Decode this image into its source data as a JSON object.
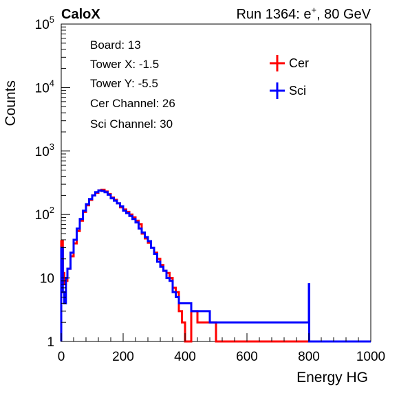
{
  "header": {
    "left_label": "CaloX",
    "run_text": "Run 1364: e",
    "run_superscript": "+",
    "run_energy": ", 80 GeV"
  },
  "info_box": {
    "lines": [
      "Board: 13",
      "Tower X: -1.5",
      "Tower Y: -5.5",
      "Cer Channel: 26",
      "Sci Channel: 30"
    ]
  },
  "chart_data": {
    "type": "line",
    "xlabel": "Energy HG",
    "ylabel": "Counts",
    "xlim": [
      0,
      1000
    ],
    "ylim": [
      1,
      100000
    ],
    "yscale": "log",
    "x_ticks": [
      "0",
      "200",
      "400",
      "600",
      "800",
      "1000"
    ],
    "y_ticks": [
      {
        "value": 1,
        "base": "1",
        "exp": ""
      },
      {
        "value": 10,
        "base": "10",
        "exp": ""
      },
      {
        "value": 100,
        "base": "10",
        "exp": "2"
      },
      {
        "value": 1000,
        "base": "10",
        "exp": "3"
      },
      {
        "value": 10000,
        "base": "10",
        "exp": "4"
      },
      {
        "value": 100000,
        "base": "10",
        "exp": "5"
      }
    ],
    "legend_position": "top-right",
    "grid": false,
    "series": [
      {
        "name": "Cer",
        "color": "#ff0000",
        "x": [
          0,
          5,
          10,
          15,
          20,
          30,
          40,
          50,
          60,
          70,
          80,
          90,
          100,
          110,
          120,
          130,
          140,
          150,
          160,
          170,
          180,
          190,
          200,
          210,
          220,
          230,
          240,
          250,
          260,
          270,
          280,
          290,
          300,
          310,
          320,
          330,
          340,
          350,
          360,
          370,
          380,
          390,
          400,
          420,
          440,
          460,
          480,
          500,
          600,
          800
        ],
        "y": [
          38,
          12,
          8,
          9,
          14,
          22,
          35,
          55,
          80,
          110,
          140,
          170,
          200,
          220,
          240,
          245,
          230,
          210,
          185,
          170,
          150,
          130,
          120,
          110,
          100,
          90,
          80,
          70,
          50,
          42,
          36,
          30,
          25,
          20,
          16,
          13,
          12,
          10,
          7,
          6,
          3,
          2,
          1,
          3,
          2,
          2,
          2,
          1,
          1,
          1
        ]
      },
      {
        "name": "Sci",
        "color": "#0000ff",
        "x": [
          0,
          5,
          10,
          15,
          20,
          30,
          40,
          50,
          60,
          70,
          80,
          90,
          100,
          110,
          120,
          130,
          140,
          150,
          160,
          170,
          180,
          190,
          200,
          210,
          220,
          230,
          240,
          250,
          260,
          270,
          280,
          290,
          300,
          310,
          320,
          330,
          340,
          350,
          360,
          370,
          380,
          390,
          400,
          420,
          440,
          460,
          480,
          500,
          520,
          560,
          600,
          620,
          800,
          801
        ],
        "y": [
          30,
          6,
          4,
          10,
          14,
          25,
          40,
          60,
          85,
          115,
          145,
          175,
          200,
          225,
          240,
          235,
          225,
          205,
          180,
          165,
          150,
          135,
          115,
          105,
          95,
          85,
          75,
          60,
          52,
          44,
          38,
          30,
          24,
          18,
          15,
          13,
          10,
          9,
          6,
          5,
          4,
          4,
          4,
          3,
          3,
          3,
          2,
          2,
          2,
          2,
          2,
          2,
          8,
          1
        ]
      }
    ]
  }
}
